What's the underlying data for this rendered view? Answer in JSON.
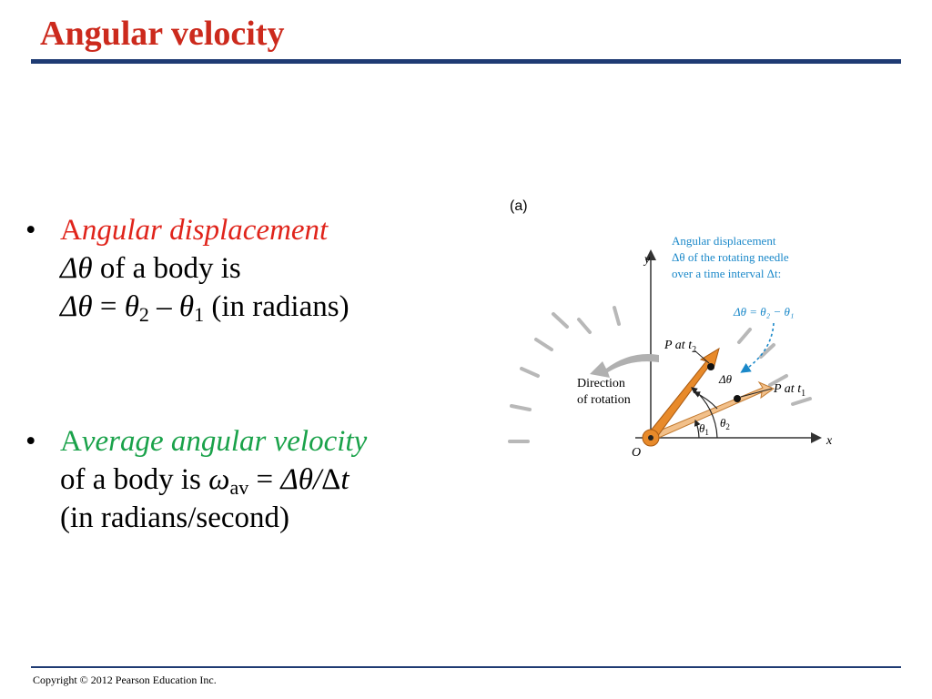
{
  "slide": {
    "title": "Angular velocity",
    "copyright": "Copyright © 2012 Pearson Education Inc."
  },
  "bullets": {
    "bullet_char": "•",
    "b1": {
      "term_first": "A",
      "term_rest": "ngular displacement",
      "line2_sym": "Δθ",
      "line2_text": " of a body is",
      "eq_lhs": "Δθ",
      "eq_sign": " = ",
      "theta": "θ",
      "sub2": "2",
      "minus": " – ",
      "sub1": "1",
      "units": " (in radians)"
    },
    "b2": {
      "term_first": "A",
      "term_rest": "verage angular velocity",
      "line2_text": "of a body is ",
      "omega": "ω",
      "sub_av": "av",
      "eq_sign": " = ",
      "dtheta": "Δθ",
      "slash": "/",
      "delta": "Δ",
      "t": "t",
      "units": "(in radians/second)"
    }
  },
  "figure": {
    "panel_label": "(a)",
    "callout_line1": "Angular displacement",
    "callout_line2": "Δθ of the rotating needle",
    "callout_line3": "over a time interval Δt:",
    "callout_eq": "Δθ = θ₂ − θ₁",
    "y_axis": "y",
    "x_axis": "x",
    "origin": "O",
    "p_at": "P at ",
    "t2": "t",
    "t2_sub": "2",
    "t1": "t",
    "t1_sub": "1",
    "delta_theta": "Δθ",
    "theta": "θ",
    "theta1_sub": "1",
    "theta2_sub": "2",
    "direction_line1": "Direction",
    "direction_line2": "of rotation",
    "colors": {
      "callout": "#1a88c9",
      "needle": "#e88a2a",
      "needle_light": "#f2c08a",
      "tick_gray": "#b8b8b8",
      "arrow_gray": "#b0b0b0"
    }
  }
}
